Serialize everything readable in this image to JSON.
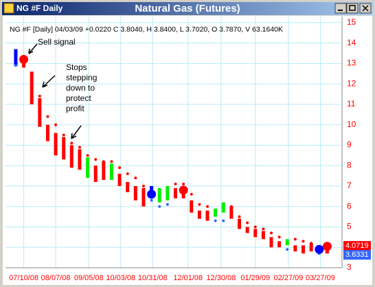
{
  "window": {
    "title": "NG #F Daily"
  },
  "chart_data": {
    "type": "range-bar",
    "title": "Natural Gas (Futures)",
    "info": "NG #F [Daily] 04/03/09 +0.0220 C 3.8040, H 3.8400, L 3.7020, O 3.7870, V 63.1640K",
    "annotations": [
      "Sell signal",
      "Stops",
      "stepping",
      "down to",
      "protect",
      "profit"
    ],
    "x": [
      "07/03/08",
      "07/10/08",
      "07/17/08",
      "07/24/08",
      "07/31/08",
      "08/07/08",
      "08/14/08",
      "08/21/08",
      "08/28/08",
      "09/04/08",
      "09/11/08",
      "09/18/08",
      "09/25/08",
      "10/02/08",
      "10/09/08",
      "10/16/08",
      "10/23/08",
      "10/30/08",
      "11/06/08",
      "11/13/08",
      "11/20/08",
      "11/27/08",
      "12/04/08",
      "12/11/08",
      "12/18/08",
      "12/25/08",
      "01/01/09",
      "01/08/09",
      "01/15/09",
      "01/22/09",
      "01/29/09",
      "02/05/09",
      "02/12/09",
      "02/19/09",
      "02/26/09",
      "03/05/09",
      "03/12/09",
      "03/19/09",
      "03/26/09",
      "04/02/09"
    ],
    "high": [
      13.7,
      13.4,
      12.6,
      11.3,
      10.0,
      9.6,
      9.4,
      9.0,
      8.8,
      8.4,
      8.0,
      8.2,
      8.1,
      7.6,
      7.2,
      7.0,
      6.9,
      7.0,
      6.9,
      7.0,
      6.9,
      6.9,
      6.3,
      5.8,
      5.8,
      5.9,
      6.2,
      6.0,
      5.4,
      5.0,
      4.9,
      4.8,
      4.5,
      4.3,
      4.4,
      4.1,
      4.1,
      4.2,
      4.1,
      4.1
    ],
    "low": [
      12.9,
      12.8,
      11.0,
      9.9,
      9.2,
      8.5,
      8.3,
      7.9,
      7.8,
      7.4,
      7.2,
      7.3,
      7.3,
      7.0,
      6.7,
      6.3,
      6.0,
      6.4,
      6.2,
      6.3,
      6.4,
      6.4,
      5.7,
      5.4,
      5.3,
      5.5,
      5.7,
      5.4,
      4.9,
      4.7,
      4.5,
      4.4,
      4.0,
      4.0,
      4.1,
      3.8,
      3.7,
      3.8,
      3.7,
      3.7
    ],
    "bar_colors": [
      "#0000ff",
      "#ff0000",
      "#ff0000",
      "#ff0000",
      "#ff0000",
      "#ff0000",
      "#ff0000",
      "#ff0000",
      "#ff0000",
      "#00ee00",
      "#ff0000",
      "#ff0000",
      "#00ee00",
      "#ff0000",
      "#ff0000",
      "#ff0000",
      "#ff0000",
      "#0000ff",
      "#00ee00",
      "#00ee00",
      "#ff0000",
      "#ff0000",
      "#ff0000",
      "#ff0000",
      "#ff0000",
      "#00ee00",
      "#00ee00",
      "#ff0000",
      "#ff0000",
      "#ff0000",
      "#ff0000",
      "#ff0000",
      "#ff0000",
      "#ff0000",
      "#00ee00",
      "#ff0000",
      "#ff0000",
      "#ff0000",
      "#0000ff",
      "#ff0000"
    ],
    "stops_above": {
      "color": "#ff0000",
      "values": [
        null,
        13.3,
        12.2,
        11.4,
        10.4,
        10.0,
        9.5,
        9.1,
        8.9,
        8.5,
        8.3,
        8.2,
        8.2,
        7.9,
        7.6,
        7.4,
        7.0,
        null,
        null,
        null,
        7.1,
        7.1,
        6.6,
        6.1,
        6.0,
        null,
        null,
        6.0,
        5.5,
        5.2,
        5.0,
        4.9,
        4.7,
        4.5,
        null,
        4.4,
        4.3,
        4.2,
        null,
        4.1
      ]
    },
    "stops_below": {
      "color": "#3366ff",
      "values": [
        12.9,
        null,
        null,
        null,
        null,
        null,
        null,
        null,
        null,
        null,
        null,
        null,
        null,
        null,
        null,
        null,
        null,
        6.3,
        6.0,
        6.1,
        null,
        null,
        null,
        null,
        null,
        5.3,
        5.3,
        null,
        null,
        null,
        null,
        null,
        null,
        null,
        3.9,
        null,
        null,
        null,
        3.7,
        null
      ]
    },
    "signals": [
      {
        "x": "07/10/08",
        "value": 13.2,
        "color": "#ff0000"
      },
      {
        "x": "10/30/08",
        "value": 6.6,
        "color": "#0000ff"
      },
      {
        "x": "11/27/08",
        "value": 6.8,
        "color": "#ff0000"
      },
      {
        "x": "03/26/09",
        "value": 3.9,
        "color": "#0000ff"
      },
      {
        "x": "04/02/09",
        "value": 4.05,
        "color": "#ff0000"
      }
    ],
    "markers": [
      {
        "value": 4.0719,
        "color": "#ff0000"
      },
      {
        "value": 3.6331,
        "color": "#3366ff"
      }
    ],
    "xlim": [
      "06/24/08",
      "04/15/09"
    ],
    "xticks": [
      "07/10/08",
      "08/07/08",
      "09/05/08",
      "10/03/08",
      "10/31/08",
      "12/01/08",
      "12/30/08",
      "01/29/09",
      "02/27/09",
      "03/27/09"
    ],
    "ylim": [
      3,
      15.3
    ],
    "yticks": [
      3,
      4,
      5,
      6,
      7,
      8,
      9,
      10,
      11,
      12,
      13,
      14,
      15
    ],
    "grid": true,
    "axis_color": "#ff0000"
  }
}
